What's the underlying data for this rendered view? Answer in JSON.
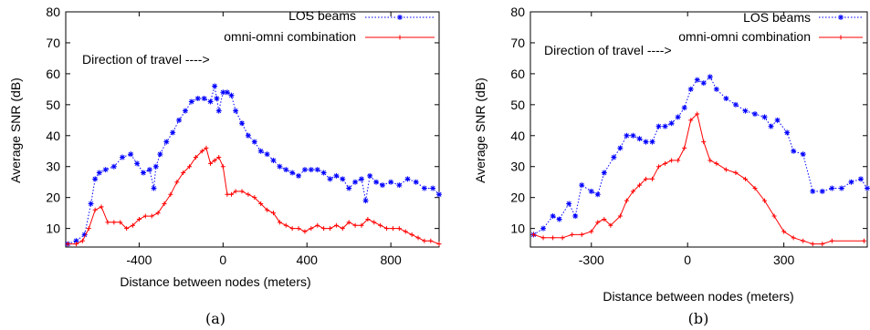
{
  "chart_data": [
    {
      "type": "line",
      "caption": "(a)",
      "xlabel": "Distance between nodes (meters)",
      "ylabel": "Average SNR (dB)",
      "xlim": [
        -750,
        1030
      ],
      "ylim": [
        4,
        80
      ],
      "xticks": [
        -400,
        0,
        400,
        800
      ],
      "yticks": [
        10,
        20,
        30,
        40,
        50,
        60,
        70,
        80
      ],
      "annotation": "Direction of travel ---->",
      "legend_position": "top-right",
      "series": [
        {
          "name": "LOS beams",
          "color": "#0000ff",
          "style": "dotted",
          "marker": "asterisk",
          "x": [
            -740,
            -700,
            -660,
            -630,
            -610,
            -590,
            -560,
            -520,
            -480,
            -440,
            -410,
            -380,
            -350,
            -330,
            -320,
            -300,
            -270,
            -240,
            -210,
            -180,
            -150,
            -120,
            -90,
            -60,
            -40,
            -30,
            -20,
            0,
            20,
            40,
            60,
            90,
            120,
            150,
            180,
            210,
            240,
            270,
            300,
            330,
            360,
            390,
            420,
            450,
            480,
            510,
            540,
            570,
            600,
            630,
            660,
            680,
            700,
            730,
            760,
            800,
            840,
            880,
            920,
            960,
            1000,
            1030
          ],
          "y": [
            5,
            6,
            8,
            18,
            26,
            28,
            29,
            30,
            33,
            34,
            31,
            28,
            29,
            23,
            30,
            34,
            38,
            41,
            45,
            48,
            51,
            52,
            52,
            51,
            56,
            52,
            48,
            54,
            54,
            53,
            48,
            44,
            40,
            38,
            35,
            34,
            32,
            30,
            29,
            28,
            27,
            29,
            29,
            29,
            28,
            26,
            27,
            26,
            23,
            25,
            26,
            19,
            27,
            25,
            24,
            25,
            24,
            26,
            25,
            23,
            23,
            21
          ]
        },
        {
          "name": "omni-omni combination",
          "color": "#ff0000",
          "style": "solid",
          "marker": "plus",
          "x": [
            -740,
            -700,
            -670,
            -640,
            -610,
            -580,
            -550,
            -520,
            -490,
            -460,
            -430,
            -400,
            -370,
            -340,
            -310,
            -280,
            -250,
            -220,
            -190,
            -160,
            -130,
            -100,
            -80,
            -60,
            -40,
            -20,
            0,
            20,
            40,
            60,
            90,
            120,
            150,
            180,
            210,
            240,
            270,
            300,
            330,
            360,
            390,
            420,
            450,
            480,
            510,
            540,
            570,
            600,
            630,
            660,
            690,
            720,
            750,
            780,
            810,
            840,
            870,
            900,
            930,
            960,
            990,
            1030
          ],
          "y": [
            5,
            5,
            6,
            10,
            16,
            17,
            12,
            12,
            12,
            10,
            11,
            13,
            14,
            14,
            15,
            18,
            21,
            25,
            28,
            30,
            33,
            35,
            36,
            31,
            32,
            33,
            30,
            21,
            21,
            22,
            22,
            21,
            20,
            18,
            16,
            15,
            12,
            11,
            10,
            10,
            9,
            10,
            11,
            10,
            10,
            11,
            10,
            12,
            11,
            11,
            13,
            12,
            11,
            10,
            10,
            10,
            9,
            8,
            7,
            6,
            6,
            5
          ]
        }
      ]
    },
    {
      "type": "line",
      "caption": "(b)",
      "xlabel": "Distance between nodes (meters)",
      "ylabel": "Average SNR (dB)",
      "xlim": [
        -490,
        560
      ],
      "ylim": [
        4,
        80
      ],
      "xticks": [
        -300,
        0,
        300
      ],
      "yticks": [
        10,
        20,
        30,
        40,
        50,
        60,
        70,
        80
      ],
      "annotation": "Direction of travel ---->",
      "legend_position": "top-right",
      "series": [
        {
          "name": "LOS beams",
          "color": "#0000ff",
          "style": "dotted",
          "marker": "asterisk",
          "x": [
            -480,
            -450,
            -420,
            -400,
            -370,
            -350,
            -330,
            -300,
            -280,
            -260,
            -230,
            -210,
            -190,
            -170,
            -150,
            -130,
            -110,
            -90,
            -70,
            -50,
            -30,
            -10,
            10,
            30,
            50,
            70,
            90,
            120,
            150,
            180,
            210,
            240,
            260,
            280,
            310,
            330,
            360,
            390,
            420,
            450,
            480,
            510,
            540,
            560
          ],
          "y": [
            8,
            10,
            14,
            13,
            18,
            14,
            24,
            22,
            21,
            28,
            33,
            36,
            40,
            40,
            39,
            38,
            38,
            43,
            43,
            44,
            46,
            49,
            55,
            58,
            57,
            59,
            55,
            52,
            50,
            48,
            47,
            46,
            43,
            45,
            41,
            35,
            34,
            22,
            22,
            23,
            23,
            25,
            26,
            23
          ]
        },
        {
          "name": "omni-omni combination",
          "color": "#ff0000",
          "style": "solid",
          "marker": "plus",
          "x": [
            -480,
            -450,
            -420,
            -390,
            -360,
            -330,
            -300,
            -280,
            -260,
            -240,
            -210,
            -190,
            -170,
            -150,
            -130,
            -110,
            -90,
            -70,
            -50,
            -30,
            -10,
            10,
            30,
            50,
            70,
            90,
            120,
            150,
            180,
            210,
            240,
            270,
            300,
            330,
            360,
            390,
            420,
            450,
            550
          ],
          "y": [
            8,
            7,
            7,
            7,
            8,
            8,
            9,
            12,
            13,
            11,
            14,
            19,
            22,
            24,
            26,
            26,
            30,
            31,
            32,
            32,
            36,
            45,
            47,
            38,
            32,
            31,
            29,
            28,
            26,
            23,
            19,
            14,
            9,
            7,
            6,
            5,
            5,
            6,
            6
          ]
        }
      ]
    }
  ]
}
